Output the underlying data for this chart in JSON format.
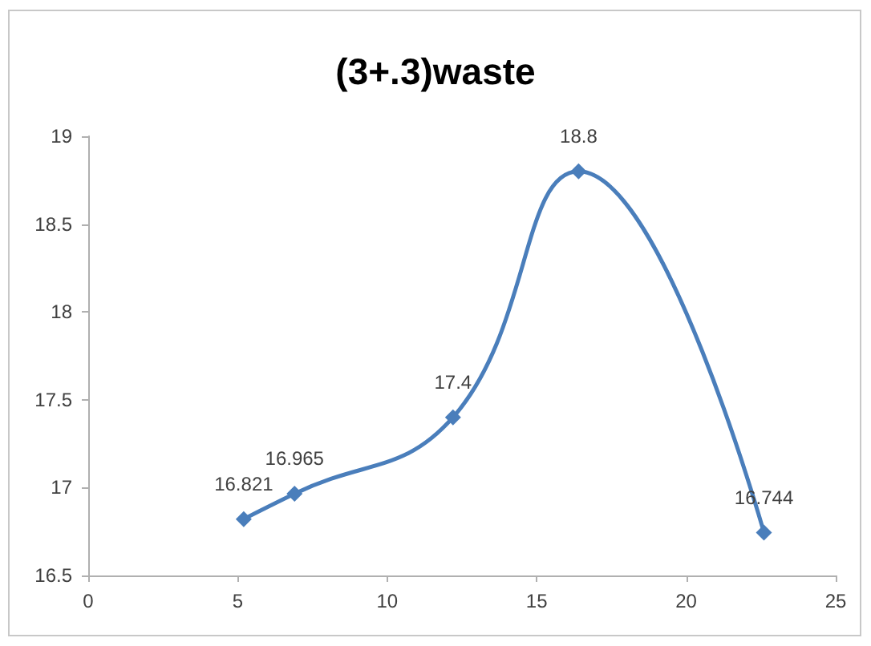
{
  "chart_data": {
    "type": "line",
    "title": "(3+.3)waste",
    "x": [
      5.2,
      6.9,
      12.2,
      16.4,
      22.6
    ],
    "series": [
      {
        "color": "#4a7ebb",
        "values": [
          16.821,
          16.965,
          17.4,
          18.8,
          16.744
        ]
      }
    ],
    "xlim": [
      0,
      25
    ],
    "xticks": [
      0,
      5,
      10,
      15,
      20,
      25
    ],
    "ylim": [
      16.5,
      19
    ],
    "yticks": [
      16.5,
      17,
      17.5,
      18,
      18.5,
      19
    ],
    "marker": "diamond",
    "line_style": "solid",
    "data_labels": true
  }
}
